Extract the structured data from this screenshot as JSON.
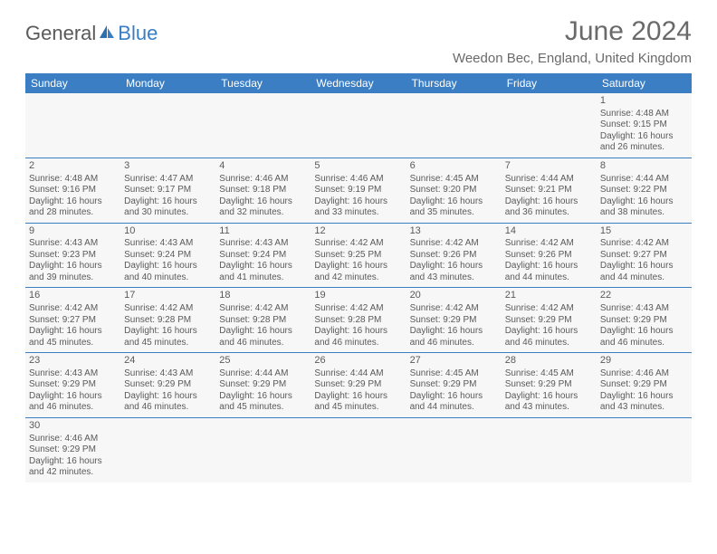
{
  "logo": {
    "text1": "General",
    "text2": "Blue"
  },
  "title": "June 2024",
  "location": "Weedon Bec, England, United Kingdom",
  "weekdays": [
    "Sunday",
    "Monday",
    "Tuesday",
    "Wednesday",
    "Thursday",
    "Friday",
    "Saturday"
  ],
  "colors": {
    "header_bg": "#3b7ec4",
    "header_text": "#ffffff",
    "cell_bg": "#f7f7f7",
    "rule": "#3b7ec4",
    "text": "#5a5a5a"
  },
  "weeks": [
    [
      null,
      null,
      null,
      null,
      null,
      null,
      {
        "n": "1",
        "sr": "Sunrise: 4:48 AM",
        "ss": "Sunset: 9:15 PM",
        "d1": "Daylight: 16 hours",
        "d2": "and 26 minutes."
      }
    ],
    [
      {
        "n": "2",
        "sr": "Sunrise: 4:48 AM",
        "ss": "Sunset: 9:16 PM",
        "d1": "Daylight: 16 hours",
        "d2": "and 28 minutes."
      },
      {
        "n": "3",
        "sr": "Sunrise: 4:47 AM",
        "ss": "Sunset: 9:17 PM",
        "d1": "Daylight: 16 hours",
        "d2": "and 30 minutes."
      },
      {
        "n": "4",
        "sr": "Sunrise: 4:46 AM",
        "ss": "Sunset: 9:18 PM",
        "d1": "Daylight: 16 hours",
        "d2": "and 32 minutes."
      },
      {
        "n": "5",
        "sr": "Sunrise: 4:46 AM",
        "ss": "Sunset: 9:19 PM",
        "d1": "Daylight: 16 hours",
        "d2": "and 33 minutes."
      },
      {
        "n": "6",
        "sr": "Sunrise: 4:45 AM",
        "ss": "Sunset: 9:20 PM",
        "d1": "Daylight: 16 hours",
        "d2": "and 35 minutes."
      },
      {
        "n": "7",
        "sr": "Sunrise: 4:44 AM",
        "ss": "Sunset: 9:21 PM",
        "d1": "Daylight: 16 hours",
        "d2": "and 36 minutes."
      },
      {
        "n": "8",
        "sr": "Sunrise: 4:44 AM",
        "ss": "Sunset: 9:22 PM",
        "d1": "Daylight: 16 hours",
        "d2": "and 38 minutes."
      }
    ],
    [
      {
        "n": "9",
        "sr": "Sunrise: 4:43 AM",
        "ss": "Sunset: 9:23 PM",
        "d1": "Daylight: 16 hours",
        "d2": "and 39 minutes."
      },
      {
        "n": "10",
        "sr": "Sunrise: 4:43 AM",
        "ss": "Sunset: 9:24 PM",
        "d1": "Daylight: 16 hours",
        "d2": "and 40 minutes."
      },
      {
        "n": "11",
        "sr": "Sunrise: 4:43 AM",
        "ss": "Sunset: 9:24 PM",
        "d1": "Daylight: 16 hours",
        "d2": "and 41 minutes."
      },
      {
        "n": "12",
        "sr": "Sunrise: 4:42 AM",
        "ss": "Sunset: 9:25 PM",
        "d1": "Daylight: 16 hours",
        "d2": "and 42 minutes."
      },
      {
        "n": "13",
        "sr": "Sunrise: 4:42 AM",
        "ss": "Sunset: 9:26 PM",
        "d1": "Daylight: 16 hours",
        "d2": "and 43 minutes."
      },
      {
        "n": "14",
        "sr": "Sunrise: 4:42 AM",
        "ss": "Sunset: 9:26 PM",
        "d1": "Daylight: 16 hours",
        "d2": "and 44 minutes."
      },
      {
        "n": "15",
        "sr": "Sunrise: 4:42 AM",
        "ss": "Sunset: 9:27 PM",
        "d1": "Daylight: 16 hours",
        "d2": "and 44 minutes."
      }
    ],
    [
      {
        "n": "16",
        "sr": "Sunrise: 4:42 AM",
        "ss": "Sunset: 9:27 PM",
        "d1": "Daylight: 16 hours",
        "d2": "and 45 minutes."
      },
      {
        "n": "17",
        "sr": "Sunrise: 4:42 AM",
        "ss": "Sunset: 9:28 PM",
        "d1": "Daylight: 16 hours",
        "d2": "and 45 minutes."
      },
      {
        "n": "18",
        "sr": "Sunrise: 4:42 AM",
        "ss": "Sunset: 9:28 PM",
        "d1": "Daylight: 16 hours",
        "d2": "and 46 minutes."
      },
      {
        "n": "19",
        "sr": "Sunrise: 4:42 AM",
        "ss": "Sunset: 9:28 PM",
        "d1": "Daylight: 16 hours",
        "d2": "and 46 minutes."
      },
      {
        "n": "20",
        "sr": "Sunrise: 4:42 AM",
        "ss": "Sunset: 9:29 PM",
        "d1": "Daylight: 16 hours",
        "d2": "and 46 minutes."
      },
      {
        "n": "21",
        "sr": "Sunrise: 4:42 AM",
        "ss": "Sunset: 9:29 PM",
        "d1": "Daylight: 16 hours",
        "d2": "and 46 minutes."
      },
      {
        "n": "22",
        "sr": "Sunrise: 4:43 AM",
        "ss": "Sunset: 9:29 PM",
        "d1": "Daylight: 16 hours",
        "d2": "and 46 minutes."
      }
    ],
    [
      {
        "n": "23",
        "sr": "Sunrise: 4:43 AM",
        "ss": "Sunset: 9:29 PM",
        "d1": "Daylight: 16 hours",
        "d2": "and 46 minutes."
      },
      {
        "n": "24",
        "sr": "Sunrise: 4:43 AM",
        "ss": "Sunset: 9:29 PM",
        "d1": "Daylight: 16 hours",
        "d2": "and 46 minutes."
      },
      {
        "n": "25",
        "sr": "Sunrise: 4:44 AM",
        "ss": "Sunset: 9:29 PM",
        "d1": "Daylight: 16 hours",
        "d2": "and 45 minutes."
      },
      {
        "n": "26",
        "sr": "Sunrise: 4:44 AM",
        "ss": "Sunset: 9:29 PM",
        "d1": "Daylight: 16 hours",
        "d2": "and 45 minutes."
      },
      {
        "n": "27",
        "sr": "Sunrise: 4:45 AM",
        "ss": "Sunset: 9:29 PM",
        "d1": "Daylight: 16 hours",
        "d2": "and 44 minutes."
      },
      {
        "n": "28",
        "sr": "Sunrise: 4:45 AM",
        "ss": "Sunset: 9:29 PM",
        "d1": "Daylight: 16 hours",
        "d2": "and 43 minutes."
      },
      {
        "n": "29",
        "sr": "Sunrise: 4:46 AM",
        "ss": "Sunset: 9:29 PM",
        "d1": "Daylight: 16 hours",
        "d2": "and 43 minutes."
      }
    ],
    [
      {
        "n": "30",
        "sr": "Sunrise: 4:46 AM",
        "ss": "Sunset: 9:29 PM",
        "d1": "Daylight: 16 hours",
        "d2": "and 42 minutes."
      },
      null,
      null,
      null,
      null,
      null,
      null
    ]
  ]
}
